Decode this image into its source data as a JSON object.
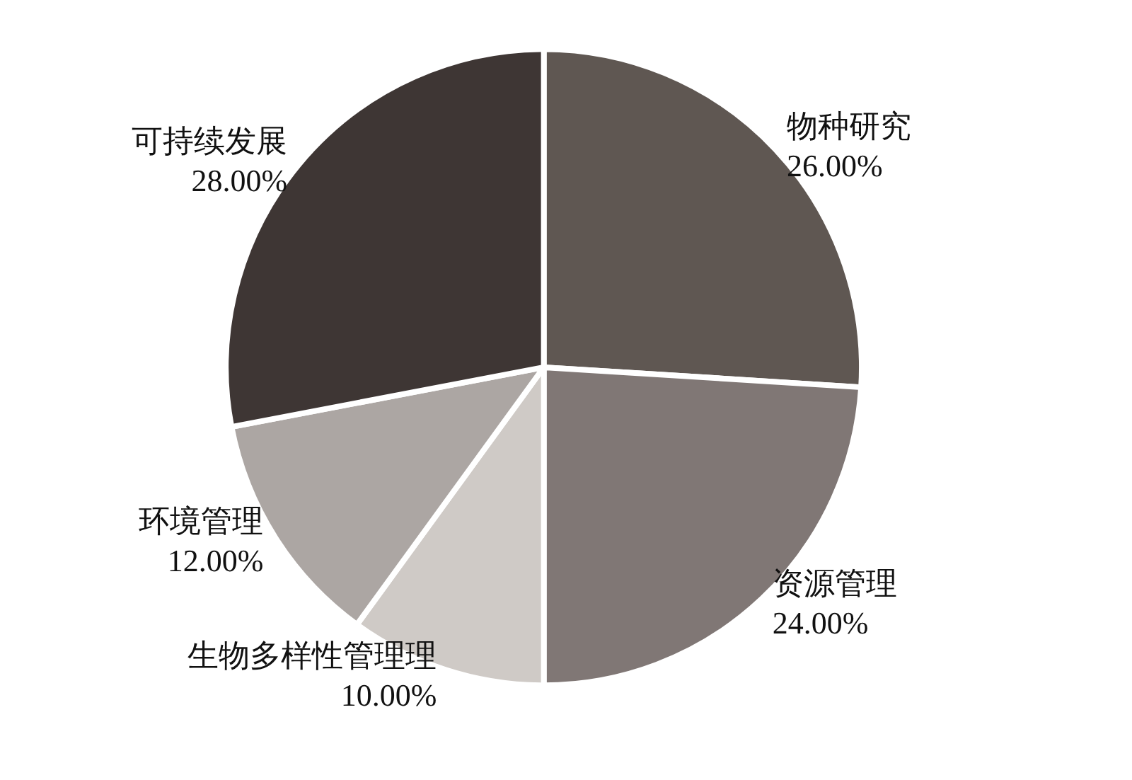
{
  "chart_data": {
    "type": "pie",
    "categories": [
      "物种研究",
      "资源管理",
      "生物多样性管理理",
      "环境管理",
      "可持续发展"
    ],
    "values": [
      26,
      24,
      10,
      12,
      28
    ],
    "colors": [
      "#5f5752",
      "#807775",
      "#cfcac6",
      "#aca6a3",
      "#3e3634"
    ],
    "value_labels": [
      "26.00%",
      "24.00%",
      "10.00%",
      "12.00%",
      "28.00%"
    ]
  }
}
